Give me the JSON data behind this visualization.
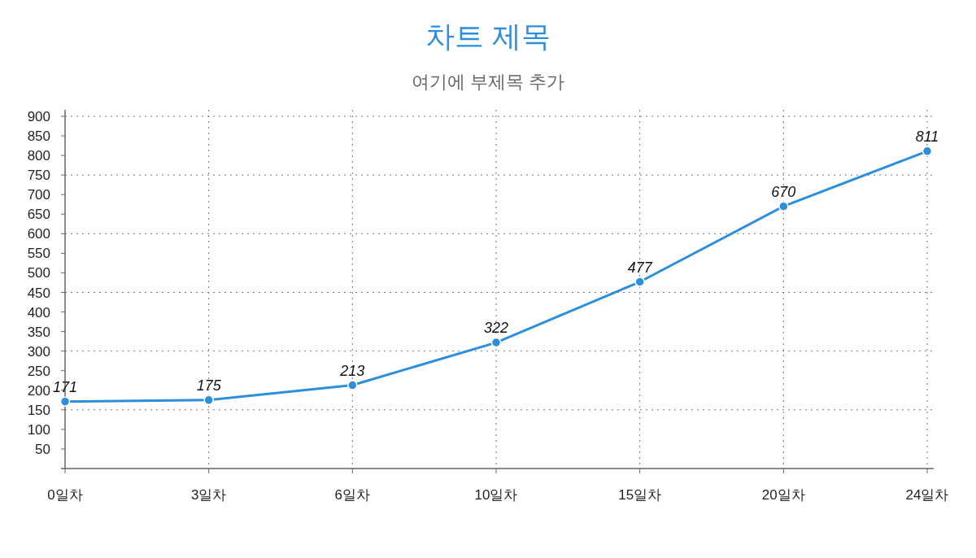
{
  "chart_data": {
    "type": "line",
    "title": "차트 제목",
    "subtitle": "여기에 부제목 추가",
    "categories": [
      "0일차",
      "3일차",
      "6일차",
      "10일차",
      "15일차",
      "20일차",
      "24일차"
    ],
    "series": [
      {
        "color": "#2d8fdb",
        "values": [
          171,
          175,
          213,
          322,
          477,
          670,
          811
        ]
      }
    ],
    "ylim": [
      0,
      900
    ],
    "yticks": [
      50,
      100,
      150,
      200,
      250,
      300,
      350,
      400,
      450,
      500,
      550,
      600,
      650,
      700,
      750,
      800,
      850,
      900
    ],
    "grid": true,
    "data_labels": true,
    "marker": "circle",
    "line_style": "solid"
  }
}
